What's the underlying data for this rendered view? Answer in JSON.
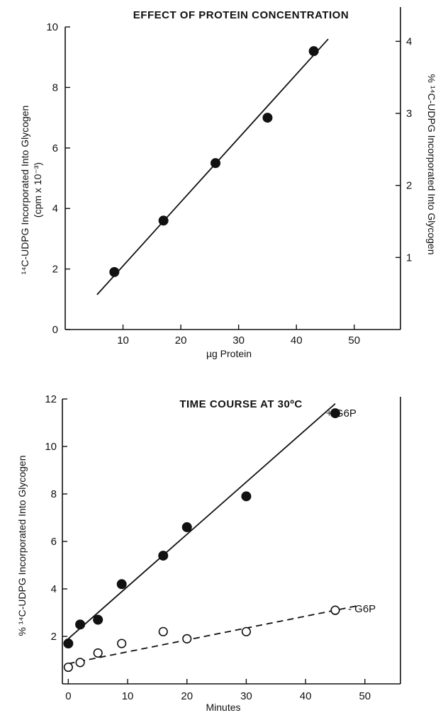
{
  "chart_data": [
    {
      "type": "scatter",
      "title": "EFFECT OF PROTEIN CONCENTRATION",
      "xlabel": "µg Protein",
      "ylabel": "¹⁴C-UDPG Incorporated Into Glycogen",
      "ylabel_units": "(cpm x 10⁻³)",
      "y2label": "% ¹⁴C-UDPG Incorporated Into Glycogen",
      "xlim": [
        0,
        58
      ],
      "ylim": [
        0,
        10
      ],
      "y2lim": [
        0,
        4.2
      ],
      "xticks": [
        10,
        20,
        30,
        40,
        50
      ],
      "yticks": [
        0,
        2,
        4,
        6,
        8,
        10
      ],
      "y2ticks": [
        1,
        2,
        3,
        4
      ],
      "grid": false,
      "series": [
        {
          "points": [
            {
              "x": 8.5,
              "y": 1.9
            },
            {
              "x": 17,
              "y": 3.6
            },
            {
              "x": 26,
              "y": 5.5
            },
            {
              "x": 35,
              "y": 7.0
            },
            {
              "x": 43,
              "y": 9.2
            }
          ],
          "marker": "filled-circle",
          "fit_line": {
            "x": [
              5.5,
              45.5
            ],
            "y": [
              1.15,
              9.6
            ],
            "style": "solid"
          }
        }
      ]
    },
    {
      "type": "scatter",
      "title": "TIME COURSE AT 30ºC",
      "xlabel": "Minutes",
      "ylabel": "% ¹⁴C-UDPG Incorporated Into Glycogen",
      "xlim": [
        -1,
        56
      ],
      "ylim": [
        0,
        12
      ],
      "xticks": [
        0,
        10,
        20,
        30,
        40,
        50
      ],
      "yticks": [
        2,
        4,
        6,
        8,
        10,
        12
      ],
      "grid": false,
      "series": [
        {
          "name": "+ G6P",
          "points": [
            {
              "x": 0,
              "y": 1.7
            },
            {
              "x": 2,
              "y": 2.5
            },
            {
              "x": 5,
              "y": 2.7
            },
            {
              "x": 9,
              "y": 4.2
            },
            {
              "x": 16,
              "y": 5.4
            },
            {
              "x": 20,
              "y": 6.6
            },
            {
              "x": 30,
              "y": 7.9
            },
            {
              "x": 45,
              "y": 11.4
            }
          ],
          "marker": "filled-circle",
          "fit_line": {
            "x": [
              0,
              45
            ],
            "y": [
              1.9,
              11.8
            ],
            "style": "solid"
          }
        },
        {
          "name": "- G6P",
          "points": [
            {
              "x": 0,
              "y": 0.7
            },
            {
              "x": 2,
              "y": 0.9
            },
            {
              "x": 5,
              "y": 1.3
            },
            {
              "x": 9,
              "y": 1.7
            },
            {
              "x": 16,
              "y": 2.2
            },
            {
              "x": 20,
              "y": 1.9
            },
            {
              "x": 30,
              "y": 2.2
            },
            {
              "x": 45,
              "y": 3.1
            }
          ],
          "marker": "open-circle",
          "fit_line": {
            "x": [
              0,
              49
            ],
            "y": [
              0.85,
              3.3
            ],
            "style": "dashed"
          }
        }
      ]
    }
  ],
  "colors": {
    "ink": "#111111",
    "background": "#ffffff"
  }
}
